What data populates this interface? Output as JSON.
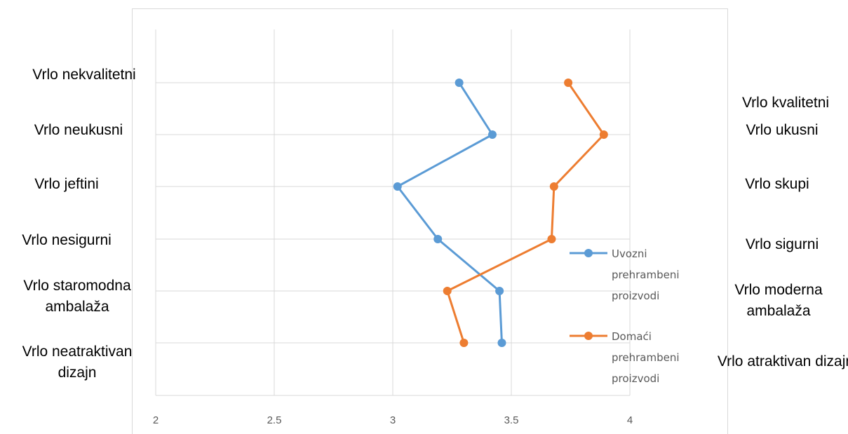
{
  "chart_data": {
    "type": "line",
    "orientation": "horizontal-values",
    "xlim": [
      2,
      4
    ],
    "x_ticks": [
      "2",
      "2.5",
      "3",
      "3.5",
      "4"
    ],
    "grid": true,
    "legend_position": "right",
    "left_labels": [
      "Vrlo nekvalitetni",
      "Vrlo neukusni",
      "Vrlo jeftini",
      "Vrlo nesigurni",
      "Vrlo staromodna ambalaža",
      "Vrlo neatraktivan dizajn"
    ],
    "right_labels": [
      "Vrlo kvalitetni",
      "Vrlo ukusni",
      "Vrlo skupi",
      "Vrlo sigurni",
      "Vrlo moderna ambalaža",
      "Vrlo atraktivan dizajn"
    ],
    "series": [
      {
        "name": "Uvozni prehrambeni proizvodi",
        "color": "#5B9BD5",
        "values": [
          3.28,
          3.42,
          3.02,
          3.19,
          3.45,
          3.46
        ]
      },
      {
        "name": "Domaći prehrambeni proizvodi",
        "color": "#ED7D31",
        "values": [
          3.74,
          3.89,
          3.68,
          3.67,
          3.23,
          3.3
        ]
      }
    ]
  }
}
